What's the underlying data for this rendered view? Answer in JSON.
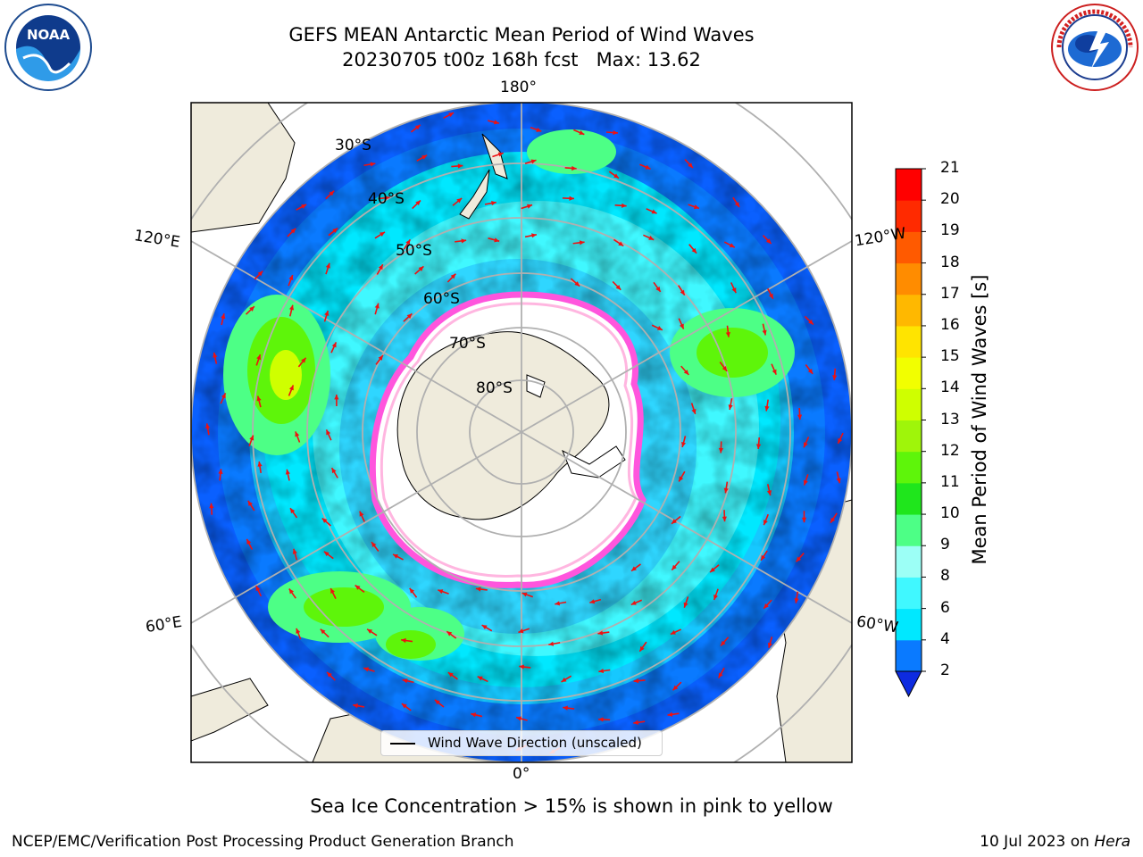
{
  "title": {
    "line1": "GEFS MEAN Antarctic Mean Period of Wind Waves",
    "line2": "20230705 t00z 168h fcst   Max: 13.62"
  },
  "logos": {
    "left": "NOAA",
    "right": "NATIONAL WEATHER SERVICE"
  },
  "map": {
    "projection": "south-polar-stereographic",
    "lon_labels": {
      "top": "180°",
      "bottom": "0°",
      "left_upper": "120°E",
      "left_lower": "60°E",
      "right_upper": "120°W",
      "right_lower": "60°W"
    },
    "lat_labels": [
      "30°S",
      "40°S",
      "50°S",
      "60°S",
      "70°S",
      "80°S"
    ],
    "legend": "Wind Wave Direction (unscaled)",
    "colors": {
      "land": "#efebdc",
      "ice_edge": "#ff55dd",
      "arrow": "#ee1111"
    }
  },
  "colorbar": {
    "label": "Mean Period of Wind Waves [s]",
    "ticks": [
      "2",
      "4",
      "6",
      "8",
      "9",
      "10",
      "11",
      "12",
      "13",
      "14",
      "15",
      "16",
      "17",
      "18",
      "19",
      "20",
      "21"
    ],
    "colors": [
      "#0d2be0",
      "#0a7aff",
      "#00e8ff",
      "#40f8ff",
      "#9cfff6",
      "#4dff86",
      "#1fe61c",
      "#5ef50a",
      "#9ff50a",
      "#cfff00",
      "#f2ff00",
      "#ffe400",
      "#ffb800",
      "#ff8c00",
      "#ff5a00",
      "#ff2a00",
      "#ff0000"
    ]
  },
  "note": "Sea Ice Concentration > 15% is shown in pink to yellow",
  "footer": {
    "left": "NCEP/EMC/Verification Post Processing Product Generation Branch",
    "right_date": "10 Jul 2023 on ",
    "right_host": "Hera"
  }
}
